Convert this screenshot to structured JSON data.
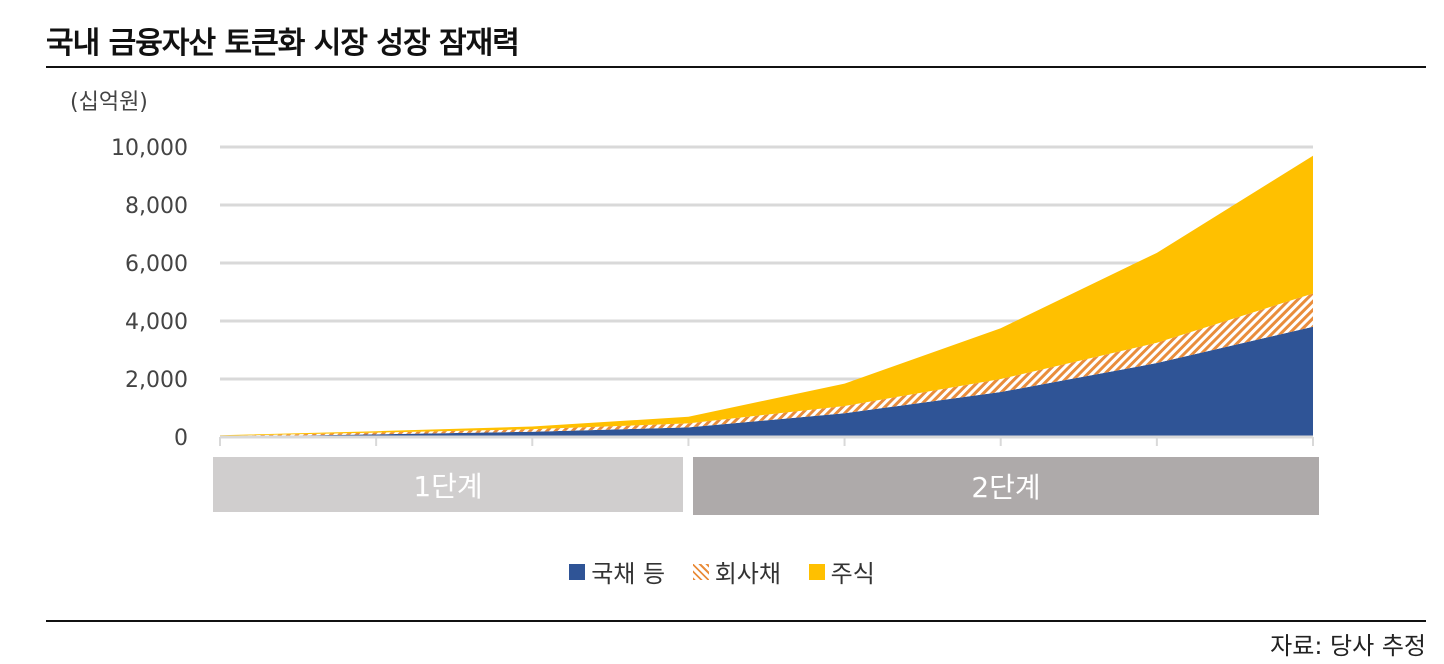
{
  "title": "국내 금융자산 토큰화 시장 성장 잠재력",
  "unit_label": "(십억원)",
  "source": "자료: 당사 추정",
  "stages": [
    {
      "label": "1단계",
      "color": "#d0cece"
    },
    {
      "label": "2단계",
      "color": "#aeaaaa"
    }
  ],
  "chart_data": {
    "type": "area",
    "stacked": true,
    "ylim": [
      0,
      10000
    ],
    "yticks": [
      "0",
      "2,000",
      "4,000",
      "6,000",
      "8,000",
      "10,000"
    ],
    "x": [
      1,
      2,
      3,
      4,
      5,
      6,
      7,
      8
    ],
    "series": [
      {
        "name": "국채 등",
        "color": "#2f5496",
        "pattern": "solid",
        "values": [
          20,
          90,
          180,
          330,
          820,
          1550,
          2550,
          3800
        ]
      },
      {
        "name": "회사채",
        "color": "#e98d3c",
        "pattern": "diagonal-hatch",
        "values": [
          20,
          60,
          90,
          140,
          250,
          450,
          700,
          1150
        ]
      },
      {
        "name": "주식",
        "color": "#ffc000",
        "pattern": "solid",
        "values": [
          20,
          50,
          90,
          230,
          770,
          1750,
          3100,
          4750
        ]
      }
    ],
    "grid": true,
    "legend_position": "bottom"
  }
}
